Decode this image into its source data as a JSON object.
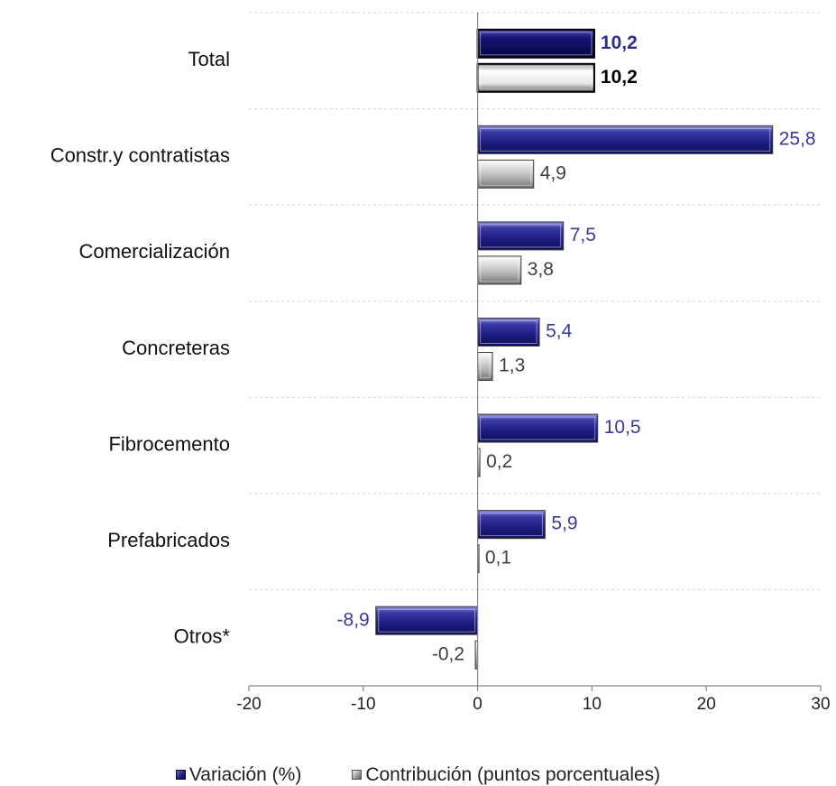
{
  "chart_data": {
    "type": "bar",
    "orientation": "horizontal",
    "categories": [
      "Total",
      "Constr.y contratistas",
      "Comercialización",
      "Concreteras",
      "Fibrocemento",
      "Prefabricados",
      "Otros*"
    ],
    "series": [
      {
        "name": "Variación (%)",
        "values": [
          10.2,
          25.8,
          7.5,
          5.4,
          10.5,
          5.9,
          -8.9
        ],
        "labels": [
          "10,2",
          "25,8",
          "7,5",
          "5,4",
          "10,5",
          "5,9",
          "-8,9"
        ]
      },
      {
        "name": "Contribución (puntos porcentuales)",
        "values": [
          10.2,
          4.9,
          3.8,
          1.3,
          0.2,
          0.1,
          -0.2
        ],
        "labels": [
          "10,2",
          "4,9",
          "3,8",
          "1,3",
          "0,2",
          "0,1",
          "-0,2"
        ]
      }
    ],
    "xlim": [
      -20,
      30
    ],
    "xticks": [
      -20,
      -10,
      0,
      10,
      20,
      30
    ],
    "xtick_labels": [
      "-20",
      "-10",
      "0",
      "10",
      "20",
      "30"
    ],
    "grid": "horizontal dashed separators",
    "legend_position": "bottom",
    "highlight_category": "Total",
    "colors": {
      "variation_label": "#3a3a9c",
      "contribution_label": "#404040",
      "total_variation_label": "#2e2e8c",
      "total_contribution_label": "#000000",
      "axis": "#888888",
      "grid": "#d4d4d4"
    }
  },
  "legend": {
    "items": [
      {
        "label": "Variación (%)",
        "icon": "navy-bevel-square"
      },
      {
        "label": "Contribución (puntos porcentuales)",
        "icon": "gray-bevel-square"
      }
    ]
  }
}
